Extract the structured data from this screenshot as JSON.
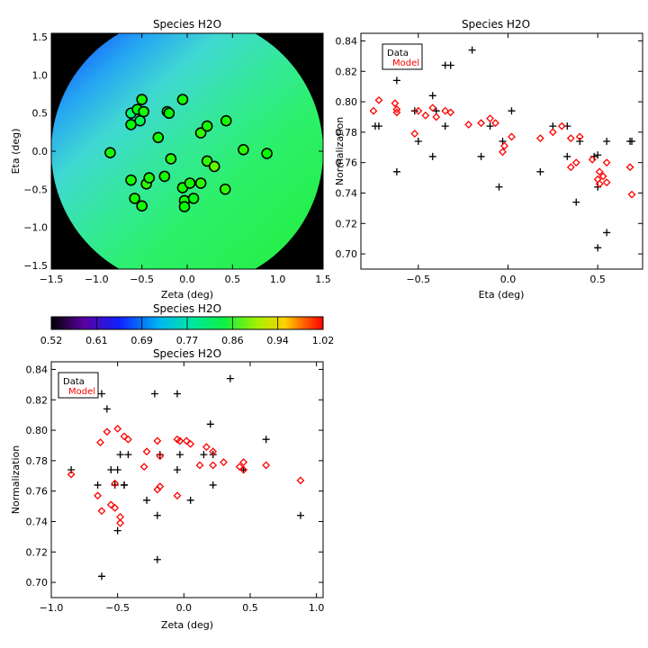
{
  "chart_data": [
    {
      "type": "heatmap",
      "title": "Species H2O",
      "xlabel": "Zeta (deg)",
      "ylabel": "Eta (deg)",
      "xlim": [
        -1.5,
        1.5
      ],
      "ylim": [
        -1.55,
        1.55
      ],
      "xticks": [
        "−1.5",
        "−1.0",
        "−0.5",
        "0.0",
        "0.5",
        "1.0",
        "1.5"
      ],
      "yticks": [
        "−1.5",
        "−1.0",
        "−0.5",
        "0.0",
        "0.5",
        "1.0",
        "1.5"
      ],
      "field_radius_deg": 1.5,
      "points": [
        {
          "x": -0.85,
          "y": -0.02,
          "v": 0.78
        },
        {
          "x": -0.62,
          "y": 0.35,
          "v": 0.77
        },
        {
          "x": -0.62,
          "y": 0.5,
          "v": 0.72
        },
        {
          "x": -0.55,
          "y": 0.55,
          "v": 0.77
        },
        {
          "x": -0.52,
          "y": 0.4,
          "v": 0.73
        },
        {
          "x": -0.5,
          "y": 0.68,
          "v": 0.78
        },
        {
          "x": -0.48,
          "y": 0.52,
          "v": 0.78
        },
        {
          "x": -0.32,
          "y": 0.18,
          "v": 0.78
        },
        {
          "x": -0.22,
          "y": 0.52,
          "v": 0.74
        },
        {
          "x": -0.2,
          "y": 0.5,
          "v": 0.77
        },
        {
          "x": -0.05,
          "y": 0.68,
          "v": 0.78
        },
        {
          "x": 0.15,
          "y": 0.24,
          "v": 0.79
        },
        {
          "x": 0.22,
          "y": 0.33,
          "v": 0.78
        },
        {
          "x": 0.43,
          "y": 0.4,
          "v": 0.78
        },
        {
          "x": 0.62,
          "y": 0.02,
          "v": 0.79
        },
        {
          "x": 0.88,
          "y": -0.03,
          "v": 0.77
        },
        {
          "x": -0.25,
          "y": -0.33,
          "v": 0.78
        },
        {
          "x": -0.18,
          "y": -0.1,
          "v": 0.79
        },
        {
          "x": -0.62,
          "y": -0.38,
          "v": 0.78
        },
        {
          "x": -0.58,
          "y": -0.62,
          "v": 0.78
        },
        {
          "x": -0.5,
          "y": -0.72,
          "v": 0.78
        },
        {
          "x": -0.45,
          "y": -0.43,
          "v": 0.79
        },
        {
          "x": -0.42,
          "y": -0.35,
          "v": 0.78
        },
        {
          "x": -0.05,
          "y": -0.48,
          "v": 0.78
        },
        {
          "x": -0.03,
          "y": -0.65,
          "v": 0.78
        },
        {
          "x": -0.03,
          "y": -0.73,
          "v": 0.77
        },
        {
          "x": 0.03,
          "y": -0.42,
          "v": 0.78
        },
        {
          "x": 0.07,
          "y": -0.62,
          "v": 0.76
        },
        {
          "x": 0.15,
          "y": -0.42,
          "v": 0.79
        },
        {
          "x": 0.22,
          "y": -0.13,
          "v": 0.79
        },
        {
          "x": 0.3,
          "y": -0.2,
          "v": 0.82
        },
        {
          "x": 0.42,
          "y": -0.5,
          "v": 0.79
        }
      ]
    },
    {
      "type": "colorbar",
      "title": "Species H2O",
      "range": [
        0.52,
        1.02
      ],
      "ticks": [
        "0.52",
        "0.61",
        "0.69",
        "0.77",
        "0.86",
        "0.94",
        "1.02"
      ]
    },
    {
      "type": "scatter",
      "title": "Species H2O",
      "xlabel": "Eta (deg)",
      "ylabel": "Normalization",
      "xlim": [
        -0.82,
        0.75
      ],
      "ylim": [
        0.69,
        0.845
      ],
      "xticks": [
        "−0.5",
        "0.0",
        "0.5"
      ],
      "yticks": [
        "0.70",
        "0.72",
        "0.74",
        "0.76",
        "0.78",
        "0.80",
        "0.82",
        "0.84"
      ],
      "legend": [
        "Data",
        "Model"
      ],
      "legend_position": "top-left",
      "series": [
        {
          "name": "Data",
          "marker": "plus",
          "color": "#000000",
          "points": [
            [
              -0.72,
              0.784
            ],
            [
              -0.74,
              0.784
            ],
            [
              -0.62,
              0.814
            ],
            [
              -0.62,
              0.754
            ],
            [
              -0.52,
              0.794
            ],
            [
              -0.5,
              0.774
            ],
            [
              -0.42,
              0.804
            ],
            [
              -0.42,
              0.764
            ],
            [
              -0.4,
              0.794
            ],
            [
              -0.35,
              0.824
            ],
            [
              -0.32,
              0.824
            ],
            [
              -0.35,
              0.784
            ],
            [
              -0.2,
              0.834
            ],
            [
              -0.15,
              0.764
            ],
            [
              -0.1,
              0.784
            ],
            [
              -0.03,
              0.774
            ],
            [
              -0.05,
              0.744
            ],
            [
              0.02,
              0.794
            ],
            [
              0.18,
              0.754
            ],
            [
              0.25,
              0.784
            ],
            [
              0.33,
              0.784
            ],
            [
              0.33,
              0.764
            ],
            [
              0.38,
              0.734
            ],
            [
              0.4,
              0.774
            ],
            [
              0.48,
              0.764
            ],
            [
              0.5,
              0.744
            ],
            [
              0.5,
              0.704
            ],
            [
              0.55,
              0.774
            ],
            [
              0.55,
              0.714
            ],
            [
              0.68,
              0.774
            ],
            [
              0.69,
              0.774
            ],
            [
              0.5,
              0.765
            ]
          ]
        },
        {
          "name": "Model",
          "marker": "diamond",
          "color": "#ff0000",
          "points": [
            [
              -0.75,
              0.794
            ],
            [
              -0.72,
              0.801
            ],
            [
              -0.63,
              0.799
            ],
            [
              -0.62,
              0.795
            ],
            [
              -0.62,
              0.793
            ],
            [
              -0.52,
              0.779
            ],
            [
              -0.5,
              0.794
            ],
            [
              -0.46,
              0.791
            ],
            [
              -0.42,
              0.796
            ],
            [
              -0.4,
              0.79
            ],
            [
              -0.35,
              0.794
            ],
            [
              -0.32,
              0.793
            ],
            [
              -0.22,
              0.785
            ],
            [
              -0.15,
              0.786
            ],
            [
              -0.1,
              0.789
            ],
            [
              -0.07,
              0.786
            ],
            [
              -0.03,
              0.767
            ],
            [
              -0.02,
              0.771
            ],
            [
              0.02,
              0.777
            ],
            [
              0.18,
              0.776
            ],
            [
              0.25,
              0.78
            ],
            [
              0.3,
              0.784
            ],
            [
              0.35,
              0.776
            ],
            [
              0.35,
              0.757
            ],
            [
              0.38,
              0.76
            ],
            [
              0.4,
              0.777
            ],
            [
              0.47,
              0.762
            ],
            [
              0.5,
              0.749
            ],
            [
              0.51,
              0.746
            ],
            [
              0.53,
              0.751
            ],
            [
              0.55,
              0.76
            ],
            [
              0.55,
              0.747
            ],
            [
              0.68,
              0.757
            ],
            [
              0.69,
              0.739
            ],
            [
              0.51,
              0.754
            ]
          ]
        }
      ]
    },
    {
      "type": "scatter",
      "title": "Species H2O",
      "xlabel": "Zeta (deg)",
      "ylabel": "Normalization",
      "xlim": [
        -1.0,
        1.05
      ],
      "ylim": [
        0.69,
        0.845
      ],
      "xticks": [
        "−1.0",
        "−0.5",
        "0.0",
        "0.5",
        "1.0"
      ],
      "yticks": [
        "0.70",
        "0.72",
        "0.74",
        "0.76",
        "0.78",
        "0.80",
        "0.82",
        "0.84"
      ],
      "legend": [
        "Data",
        "Model"
      ],
      "legend_position": "top-left",
      "series": [
        {
          "name": "Data",
          "marker": "plus",
          "color": "#000000",
          "points": [
            [
              -0.85,
              0.774
            ],
            [
              -0.65,
              0.764
            ],
            [
              -0.62,
              0.824
            ],
            [
              -0.62,
              0.704
            ],
            [
              -0.58,
              0.814
            ],
            [
              -0.55,
              0.774
            ],
            [
              -0.52,
              0.764
            ],
            [
              -0.5,
              0.774
            ],
            [
              -0.5,
              0.734
            ],
            [
              -0.48,
              0.784
            ],
            [
              -0.45,
              0.764
            ],
            [
              -0.45,
              0.764
            ],
            [
              -0.42,
              0.784
            ],
            [
              -0.28,
              0.754
            ],
            [
              -0.22,
              0.824
            ],
            [
              -0.2,
              0.744
            ],
            [
              -0.2,
              0.715
            ],
            [
              -0.18,
              0.784
            ],
            [
              -0.05,
              0.824
            ],
            [
              -0.05,
              0.774
            ],
            [
              -0.03,
              0.784
            ],
            [
              0.05,
              0.754
            ],
            [
              0.15,
              0.784
            ],
            [
              0.2,
              0.804
            ],
            [
              0.22,
              0.784
            ],
            [
              0.22,
              0.764
            ],
            [
              0.35,
              0.834
            ],
            [
              0.45,
              0.774
            ],
            [
              0.62,
              0.794
            ],
            [
              0.88,
              0.744
            ]
          ]
        },
        {
          "name": "Model",
          "marker": "diamond",
          "color": "#ff0000",
          "points": [
            [
              -0.85,
              0.771
            ],
            [
              -0.65,
              0.757
            ],
            [
              -0.63,
              0.792
            ],
            [
              -0.62,
              0.747
            ],
            [
              -0.58,
              0.799
            ],
            [
              -0.55,
              0.751
            ],
            [
              -0.52,
              0.749
            ],
            [
              -0.52,
              0.765
            ],
            [
              -0.5,
              0.801
            ],
            [
              -0.48,
              0.739
            ],
            [
              -0.48,
              0.743
            ],
            [
              -0.45,
              0.796
            ],
            [
              -0.42,
              0.794
            ],
            [
              -0.3,
              0.776
            ],
            [
              -0.28,
              0.786
            ],
            [
              -0.2,
              0.793
            ],
            [
              -0.2,
              0.761
            ],
            [
              -0.18,
              0.763
            ],
            [
              -0.05,
              0.794
            ],
            [
              -0.05,
              0.757
            ],
            [
              -0.03,
              0.793
            ],
            [
              0.02,
              0.793
            ],
            [
              0.05,
              0.791
            ],
            [
              0.12,
              0.777
            ],
            [
              0.17,
              0.789
            ],
            [
              0.22,
              0.786
            ],
            [
              0.22,
              0.777
            ],
            [
              0.3,
              0.779
            ],
            [
              0.42,
              0.776
            ],
            [
              0.45,
              0.779
            ],
            [
              0.62,
              0.777
            ],
            [
              0.88,
              0.767
            ],
            [
              -0.18,
              0.783
            ],
            [
              0.45,
              0.774
            ]
          ]
        }
      ]
    }
  ]
}
